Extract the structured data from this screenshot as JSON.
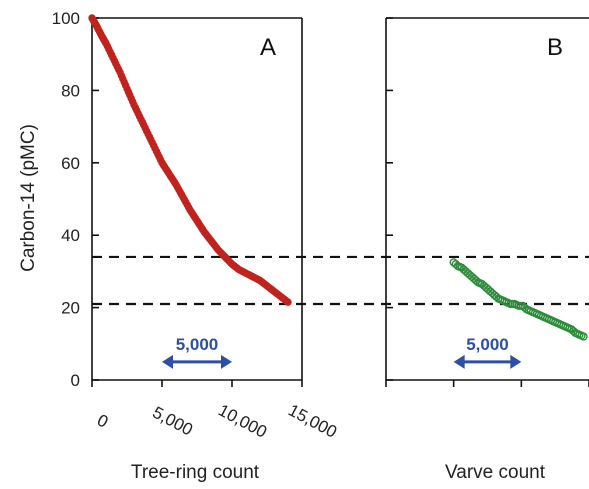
{
  "chart_data": {
    "type": "scatter",
    "ylabel": "Carbon-14  (pMC)",
    "ylim": [
      0,
      100
    ],
    "yticks": [
      "0",
      "20",
      "40",
      "60",
      "80",
      "100"
    ],
    "reference_lines_y": [
      34,
      21
    ],
    "colors": {
      "tree_ring": "#c0231e",
      "varve": "#2e8b3a",
      "span_arrow": "#2e4fa3",
      "dashed_line": "#111111"
    },
    "panels": [
      {
        "letter": "A",
        "xlabel": "Tree-ring count",
        "xlim": [
          0,
          15000
        ],
        "xticks": [
          "0",
          "5,000",
          "10,000",
          "15,000"
        ],
        "marker": "filled",
        "span": {
          "from": 5000,
          "to": 10000,
          "label": "5,000",
          "y": 5
        },
        "points": [
          [
            0,
            100
          ],
          [
            300,
            98
          ],
          [
            700,
            95
          ],
          [
            1000,
            93
          ],
          [
            1500,
            89
          ],
          [
            2000,
            85
          ],
          [
            2500,
            80.5
          ],
          [
            3000,
            76
          ],
          [
            3500,
            72
          ],
          [
            4000,
            68
          ],
          [
            4500,
            64
          ],
          [
            5000,
            60
          ],
          [
            5500,
            57
          ],
          [
            6000,
            54
          ],
          [
            6500,
            50.5
          ],
          [
            7000,
            47
          ],
          [
            7500,
            44
          ],
          [
            8000,
            41
          ],
          [
            8500,
            38.5
          ],
          [
            9000,
            36
          ],
          [
            9500,
            34
          ],
          [
            10000,
            32
          ],
          [
            10500,
            30.5
          ],
          [
            11000,
            29.5
          ],
          [
            11500,
            28.5
          ],
          [
            12000,
            27.5
          ],
          [
            12500,
            26
          ],
          [
            13000,
            24.5
          ],
          [
            13500,
            23
          ],
          [
            14000,
            21.5
          ]
        ]
      },
      {
        "letter": "B",
        "xlabel": "Varve count",
        "xlim": [
          0,
          15000
        ],
        "xticks": [],
        "marker": "open",
        "span": {
          "from": 5000,
          "to": 10000,
          "label": "5,000",
          "y": 5
        },
        "points": [
          [
            5000,
            32.5
          ],
          [
            5300,
            31.5
          ],
          [
            5600,
            31
          ],
          [
            5900,
            30
          ],
          [
            6200,
            29
          ],
          [
            6500,
            28
          ],
          [
            6800,
            27
          ],
          [
            7100,
            26.5
          ],
          [
            7400,
            25.5
          ],
          [
            7700,
            24.5
          ],
          [
            8000,
            23.5
          ],
          [
            8300,
            22.5
          ],
          [
            8600,
            22
          ],
          [
            8900,
            21.5
          ],
          [
            9200,
            21
          ],
          [
            9500,
            21
          ],
          [
            9800,
            20.5
          ],
          [
            10100,
            20.5
          ],
          [
            10400,
            19.5
          ],
          [
            10700,
            19
          ],
          [
            11000,
            18.5
          ],
          [
            11300,
            18
          ],
          [
            11600,
            17.5
          ],
          [
            11900,
            17
          ],
          [
            12200,
            16.5
          ],
          [
            12500,
            16
          ],
          [
            12800,
            15.5
          ],
          [
            13100,
            15
          ],
          [
            13400,
            14.5
          ],
          [
            13700,
            14
          ],
          [
            14000,
            13
          ],
          [
            14300,
            12.5
          ],
          [
            14600,
            12
          ]
        ]
      }
    ]
  }
}
